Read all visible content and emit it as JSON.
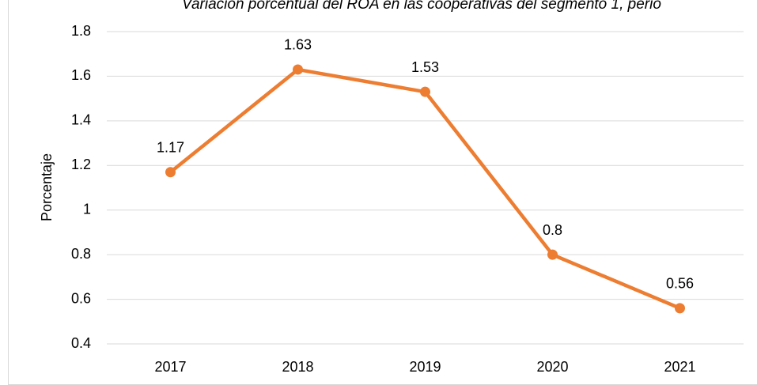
{
  "chart_data": {
    "type": "line",
    "title": "Variación porcentual del ROA en las cooperativas del segmento 1, perio",
    "y_label": "Porcentaje",
    "categories": [
      "2017",
      "2018",
      "2019",
      "2020",
      "2021"
    ],
    "series": [
      {
        "name": "ROA",
        "color": "#ed7d31",
        "values": [
          1.17,
          1.63,
          1.53,
          0.8,
          0.56
        ]
      }
    ],
    "ylim": [
      0.4,
      1.8
    ],
    "yticks": [
      0.4,
      0.6,
      0.8,
      1,
      1.2,
      1.4,
      1.6,
      1.8
    ],
    "grid": true
  }
}
